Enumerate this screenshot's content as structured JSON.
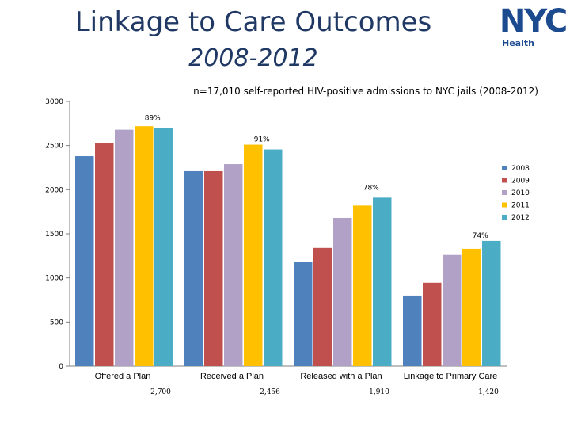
{
  "header": {
    "title": "Linkage to Care Outcomes",
    "subtitle": "2008-2012",
    "logo_text": "NYC",
    "logo_subtext": "Health"
  },
  "colors": {
    "title": "#1f3864",
    "logo": "#1c4a8f",
    "series": [
      "#4f81bd",
      "#c0504d",
      "#b2a1c7",
      "#ffc000",
      "#4bacc6"
    ]
  },
  "chart_data": {
    "type": "bar",
    "title": "n=17,010 self-reported HIV-positive admissions to NYC jails (2008-2012)",
    "xlabel": "",
    "ylabel": "",
    "ylim": [
      0,
      3000
    ],
    "yticks": [
      0,
      500,
      1000,
      1500,
      2000,
      2500,
      3000
    ],
    "grid": false,
    "legend_position": "right",
    "categories": [
      "Offered a Plan",
      "Received a Plan",
      "Released with a Plan",
      "Linkage to Primary Care"
    ],
    "series": [
      {
        "name": "2008",
        "values": [
          2380,
          2210,
          1180,
          800
        ]
      },
      {
        "name": "2009",
        "values": [
          2530,
          2210,
          1340,
          945
        ]
      },
      {
        "name": "2010",
        "values": [
          2680,
          2290,
          1680,
          1260
        ]
      },
      {
        "name": "2011",
        "values": [
          2720,
          2510,
          1820,
          1330
        ]
      },
      {
        "name": "2012",
        "values": [
          2700,
          2456,
          1910,
          1420
        ]
      }
    ],
    "annotations": [
      {
        "text": "89%",
        "category": 0
      },
      {
        "text": "91%",
        "category": 1
      },
      {
        "text": "78%",
        "category": 2
      },
      {
        "text": "74%",
        "category": 3
      }
    ],
    "totals": [
      "2,700",
      "2,456",
      "1,910",
      "1,420"
    ]
  }
}
